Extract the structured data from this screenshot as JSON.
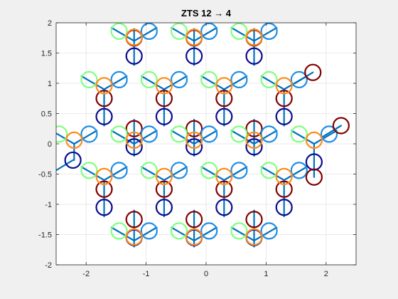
{
  "chart_data": {
    "type": "scatter",
    "title": "ZTS 12 → 4",
    "xlabel": "",
    "ylabel": "",
    "xlim": [
      -2.5,
      2.5
    ],
    "ylim": [
      -2,
      2
    ],
    "xticks": [
      -2,
      -1,
      0,
      1,
      2
    ],
    "yticks": [
      -2,
      -1.5,
      -1,
      -0.5,
      0,
      0.5,
      1,
      1.5,
      2
    ],
    "xtick_labels": [
      "-2",
      "-1",
      "0",
      "1",
      "2"
    ],
    "ytick_labels": [
      "-2",
      "-1.5",
      "-1",
      "-0.5",
      "0",
      "0.5",
      "1",
      "1.5",
      "2"
    ],
    "grid": true,
    "line_color": "#0072bd",
    "marker_colors": {
      "green": "#80ff80",
      "lightblue": "#1f8ee6",
      "orange": "#ff8c1a",
      "darkblue": "#0b0b8c",
      "darkred": "#800000"
    },
    "hex_lattice": {
      "centers_x": [
        -1.7,
        -0.7,
        0.3,
        1.3
      ],
      "centers_y": [
        -1.6,
        -0.6,
        0.4,
        1.4
      ],
      "col_offsets": [
        -0.5,
        0,
        0.5
      ],
      "row_offsets": [
        -0.55,
        0.45,
        1.45
      ],
      "arm": 0.3
    },
    "spokes": [
      {
        "x": 1.78,
        "y": 1.18,
        "color": "darkred"
      },
      {
        "x": 2.25,
        "y": 0.3,
        "color": "darkred"
      },
      {
        "x": -2.22,
        "y": -0.27,
        "color": "darkblue"
      }
    ]
  }
}
